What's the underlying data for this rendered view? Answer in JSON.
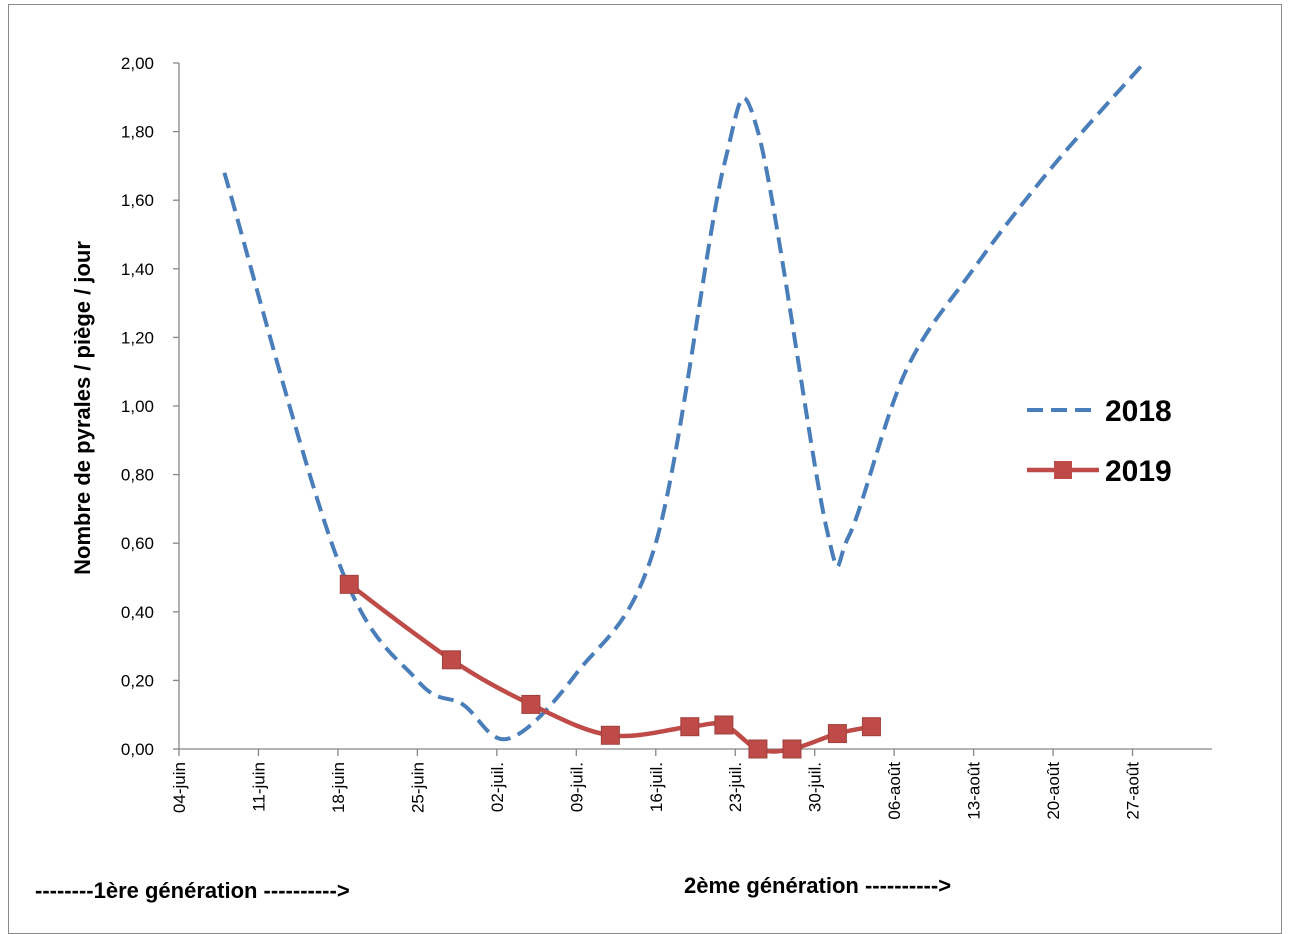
{
  "chart_data": {
    "type": "line",
    "ylabel": "Nombre de pyrales / piège / jour",
    "xlabel": "",
    "ylim": [
      0,
      2.0
    ],
    "yticks": [
      "0,00",
      "0,20",
      "0,40",
      "0,60",
      "0,80",
      "1,00",
      "1,20",
      "1,40",
      "1,60",
      "1,80",
      "2,00"
    ],
    "xticks": [
      "04-juin",
      "11-juin",
      "18-juin",
      "25-juin",
      "02-juil.",
      "09-juil.",
      "16-juil.",
      "23-juil.",
      "30-juil.",
      "06-août",
      "13-août",
      "20-août",
      "27-août"
    ],
    "xlim": [
      "04-juin",
      "03-sept"
    ],
    "grid": false,
    "legend_position": "right",
    "series": [
      {
        "name": "2018",
        "style": "dashed",
        "smooth": true,
        "markers": false,
        "color": "#4A7EBB",
        "x": [
          "08-juin",
          "18-juin",
          "25-juin",
          "29-juin",
          "03-juil.",
          "09-juil.",
          "16-juil.",
          "22-juil.",
          "25-juil.",
          "31-juil.",
          "02-août",
          "07-août",
          "13-août",
          "20-août",
          "28-août"
        ],
        "y": [
          1.68,
          0.55,
          0.2,
          0.13,
          0.03,
          0.22,
          0.6,
          1.7,
          1.8,
          0.65,
          0.62,
          1.1,
          1.4,
          1.7,
          2.0
        ]
      },
      {
        "name": "2019",
        "style": "solid",
        "smooth": true,
        "markers": true,
        "marker": "square",
        "color": "#BE4B48",
        "x": [
          "19-juin",
          "28-juin",
          "05-juil.",
          "12-juil.",
          "19-juil.",
          "22-juil.",
          "25-juil.",
          "28-juil.",
          "01-août",
          "04-août"
        ],
        "y": [
          0.48,
          0.26,
          0.13,
          0.04,
          0.065,
          0.07,
          0.0,
          0.0,
          0.045,
          0.065
        ]
      }
    ]
  },
  "annotations": {
    "gen1": "--------1ère génération ---------->",
    "gen2": "2ème génération ---------->"
  }
}
